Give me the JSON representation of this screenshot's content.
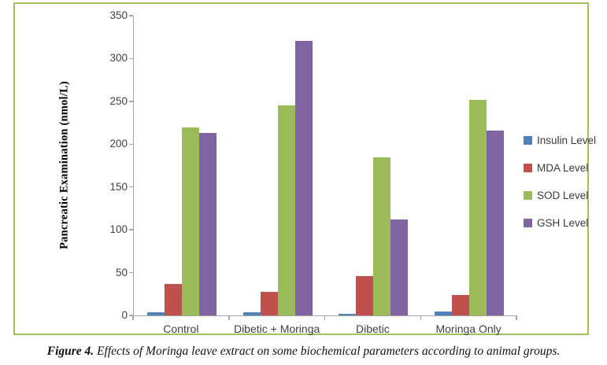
{
  "chart_data": {
    "type": "bar",
    "title": "",
    "xlabel": "",
    "ylabel": "Pancreatic Examination (nmol/L)",
    "ylim": [
      0,
      350
    ],
    "yticks": [
      0,
      50,
      100,
      150,
      200,
      250,
      300,
      350
    ],
    "grid": false,
    "legend_position": "right",
    "categories": [
      "Control",
      "Dibetic + Moringa",
      "Dibetic",
      "Moringa Only"
    ],
    "series": [
      {
        "name": "Insulin Level",
        "color": "#4F81BD",
        "values": [
          4,
          4,
          2,
          5
        ]
      },
      {
        "name": "MDA Level",
        "color": "#C0504D",
        "values": [
          37,
          28,
          46,
          24
        ]
      },
      {
        "name": "SOD Level",
        "color": "#9BBB59",
        "values": [
          220,
          245,
          185,
          252
        ]
      },
      {
        "name": "GSH Level",
        "color": "#8064A2",
        "values": [
          213,
          321,
          112,
          216
        ]
      }
    ]
  },
  "caption": {
    "label": "Figure 4.",
    "text": " Effects of Moringa leave extract on some biochemical parameters according to animal groups."
  },
  "colors": {
    "frame_border": "#A3BF5E",
    "axis": "#A6A6A6",
    "tick_text": "#3F3F3F"
  }
}
